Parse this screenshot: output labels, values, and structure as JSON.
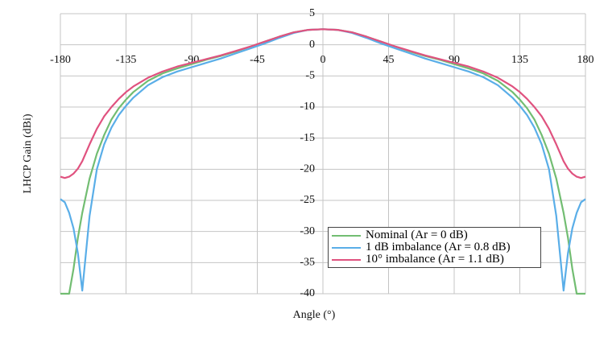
{
  "chart_data": {
    "type": "line",
    "xlabel": "Angle (°)",
    "ylabel": "LHCP Gain (dBi)",
    "xlim": [
      -180,
      180
    ],
    "ylim": [
      -40,
      5
    ],
    "xticks": [
      -180,
      -135,
      -90,
      -45,
      0,
      45,
      90,
      135,
      180
    ],
    "yticks": [
      -40,
      -35,
      -30,
      -25,
      -20,
      -15,
      -10,
      -5,
      0,
      5
    ],
    "grid": true,
    "legend": "lower right",
    "x": [
      -180,
      -177,
      -174,
      -171,
      -168,
      -165,
      -160,
      -155,
      -150,
      -145,
      -140,
      -135,
      -130,
      -120,
      -110,
      -100,
      -90,
      -80,
      -70,
      -60,
      -50,
      -45,
      -40,
      -30,
      -20,
      -10,
      0,
      10,
      20,
      30,
      40,
      45,
      50,
      60,
      70,
      80,
      90,
      100,
      110,
      120,
      130,
      135,
      140,
      145,
      150,
      155,
      160,
      165,
      168,
      171,
      174,
      177,
      180
    ],
    "series": [
      {
        "name": "Nominal (Ar = 0 dB)",
        "color": "#72bd72",
        "values": [
          -40,
          -40,
          -40,
          -36,
          -31,
          -27,
          -21.5,
          -17.5,
          -14.5,
          -12,
          -10.2,
          -8.8,
          -7.6,
          -5.8,
          -4.6,
          -3.8,
          -3.1,
          -2.4,
          -1.8,
          -1.1,
          -0.3,
          0.1,
          0.5,
          1.3,
          2.0,
          2.4,
          2.5,
          2.4,
          2.0,
          1.3,
          0.5,
          0.1,
          -0.3,
          -1.1,
          -1.8,
          -2.4,
          -3.1,
          -3.8,
          -4.6,
          -5.8,
          -7.6,
          -8.8,
          -10.2,
          -12,
          -14.5,
          -17.5,
          -21.5,
          -27,
          -31,
          -36,
          -40,
          -40,
          -40
        ]
      },
      {
        "name": "1 dB imbalance (Ar = 0.8 dB)",
        "color": "#5aaee8",
        "values": [
          -24.8,
          -25.3,
          -27,
          -29.5,
          -33.5,
          -39.5,
          -27.5,
          -20,
          -16,
          -13.3,
          -11.3,
          -9.8,
          -8.5,
          -6.5,
          -5.2,
          -4.3,
          -3.6,
          -2.9,
          -2.2,
          -1.4,
          -0.6,
          -0.2,
          0.2,
          1.1,
          1.9,
          2.4,
          2.5,
          2.4,
          1.9,
          1.1,
          0.2,
          -0.2,
          -0.6,
          -1.4,
          -2.2,
          -2.9,
          -3.6,
          -4.3,
          -5.2,
          -6.5,
          -8.5,
          -9.8,
          -11.3,
          -13.3,
          -16,
          -20,
          -27.5,
          -39.5,
          -33.5,
          -29.5,
          -27,
          -25.3,
          -24.8
        ]
      },
      {
        "name": "10° imbalance (Ar = 1.1 dB)",
        "color": "#e0527f",
        "values": [
          -21.2,
          -21.4,
          -21.2,
          -20.7,
          -19.9,
          -18.7,
          -16,
          -13.5,
          -11.5,
          -10,
          -8.7,
          -7.6,
          -6.7,
          -5.3,
          -4.3,
          -3.5,
          -2.9,
          -2.3,
          -1.7,
          -1.0,
          -0.3,
          0.1,
          0.5,
          1.3,
          2.0,
          2.4,
          2.5,
          2.4,
          2.0,
          1.3,
          0.5,
          0.1,
          -0.3,
          -1.0,
          -1.7,
          -2.3,
          -2.9,
          -3.5,
          -4.3,
          -5.3,
          -6.7,
          -7.6,
          -8.7,
          -10,
          -11.5,
          -13.5,
          -16,
          -18.7,
          -19.9,
          -20.7,
          -21.2,
          -21.4,
          -21.2
        ]
      }
    ]
  }
}
